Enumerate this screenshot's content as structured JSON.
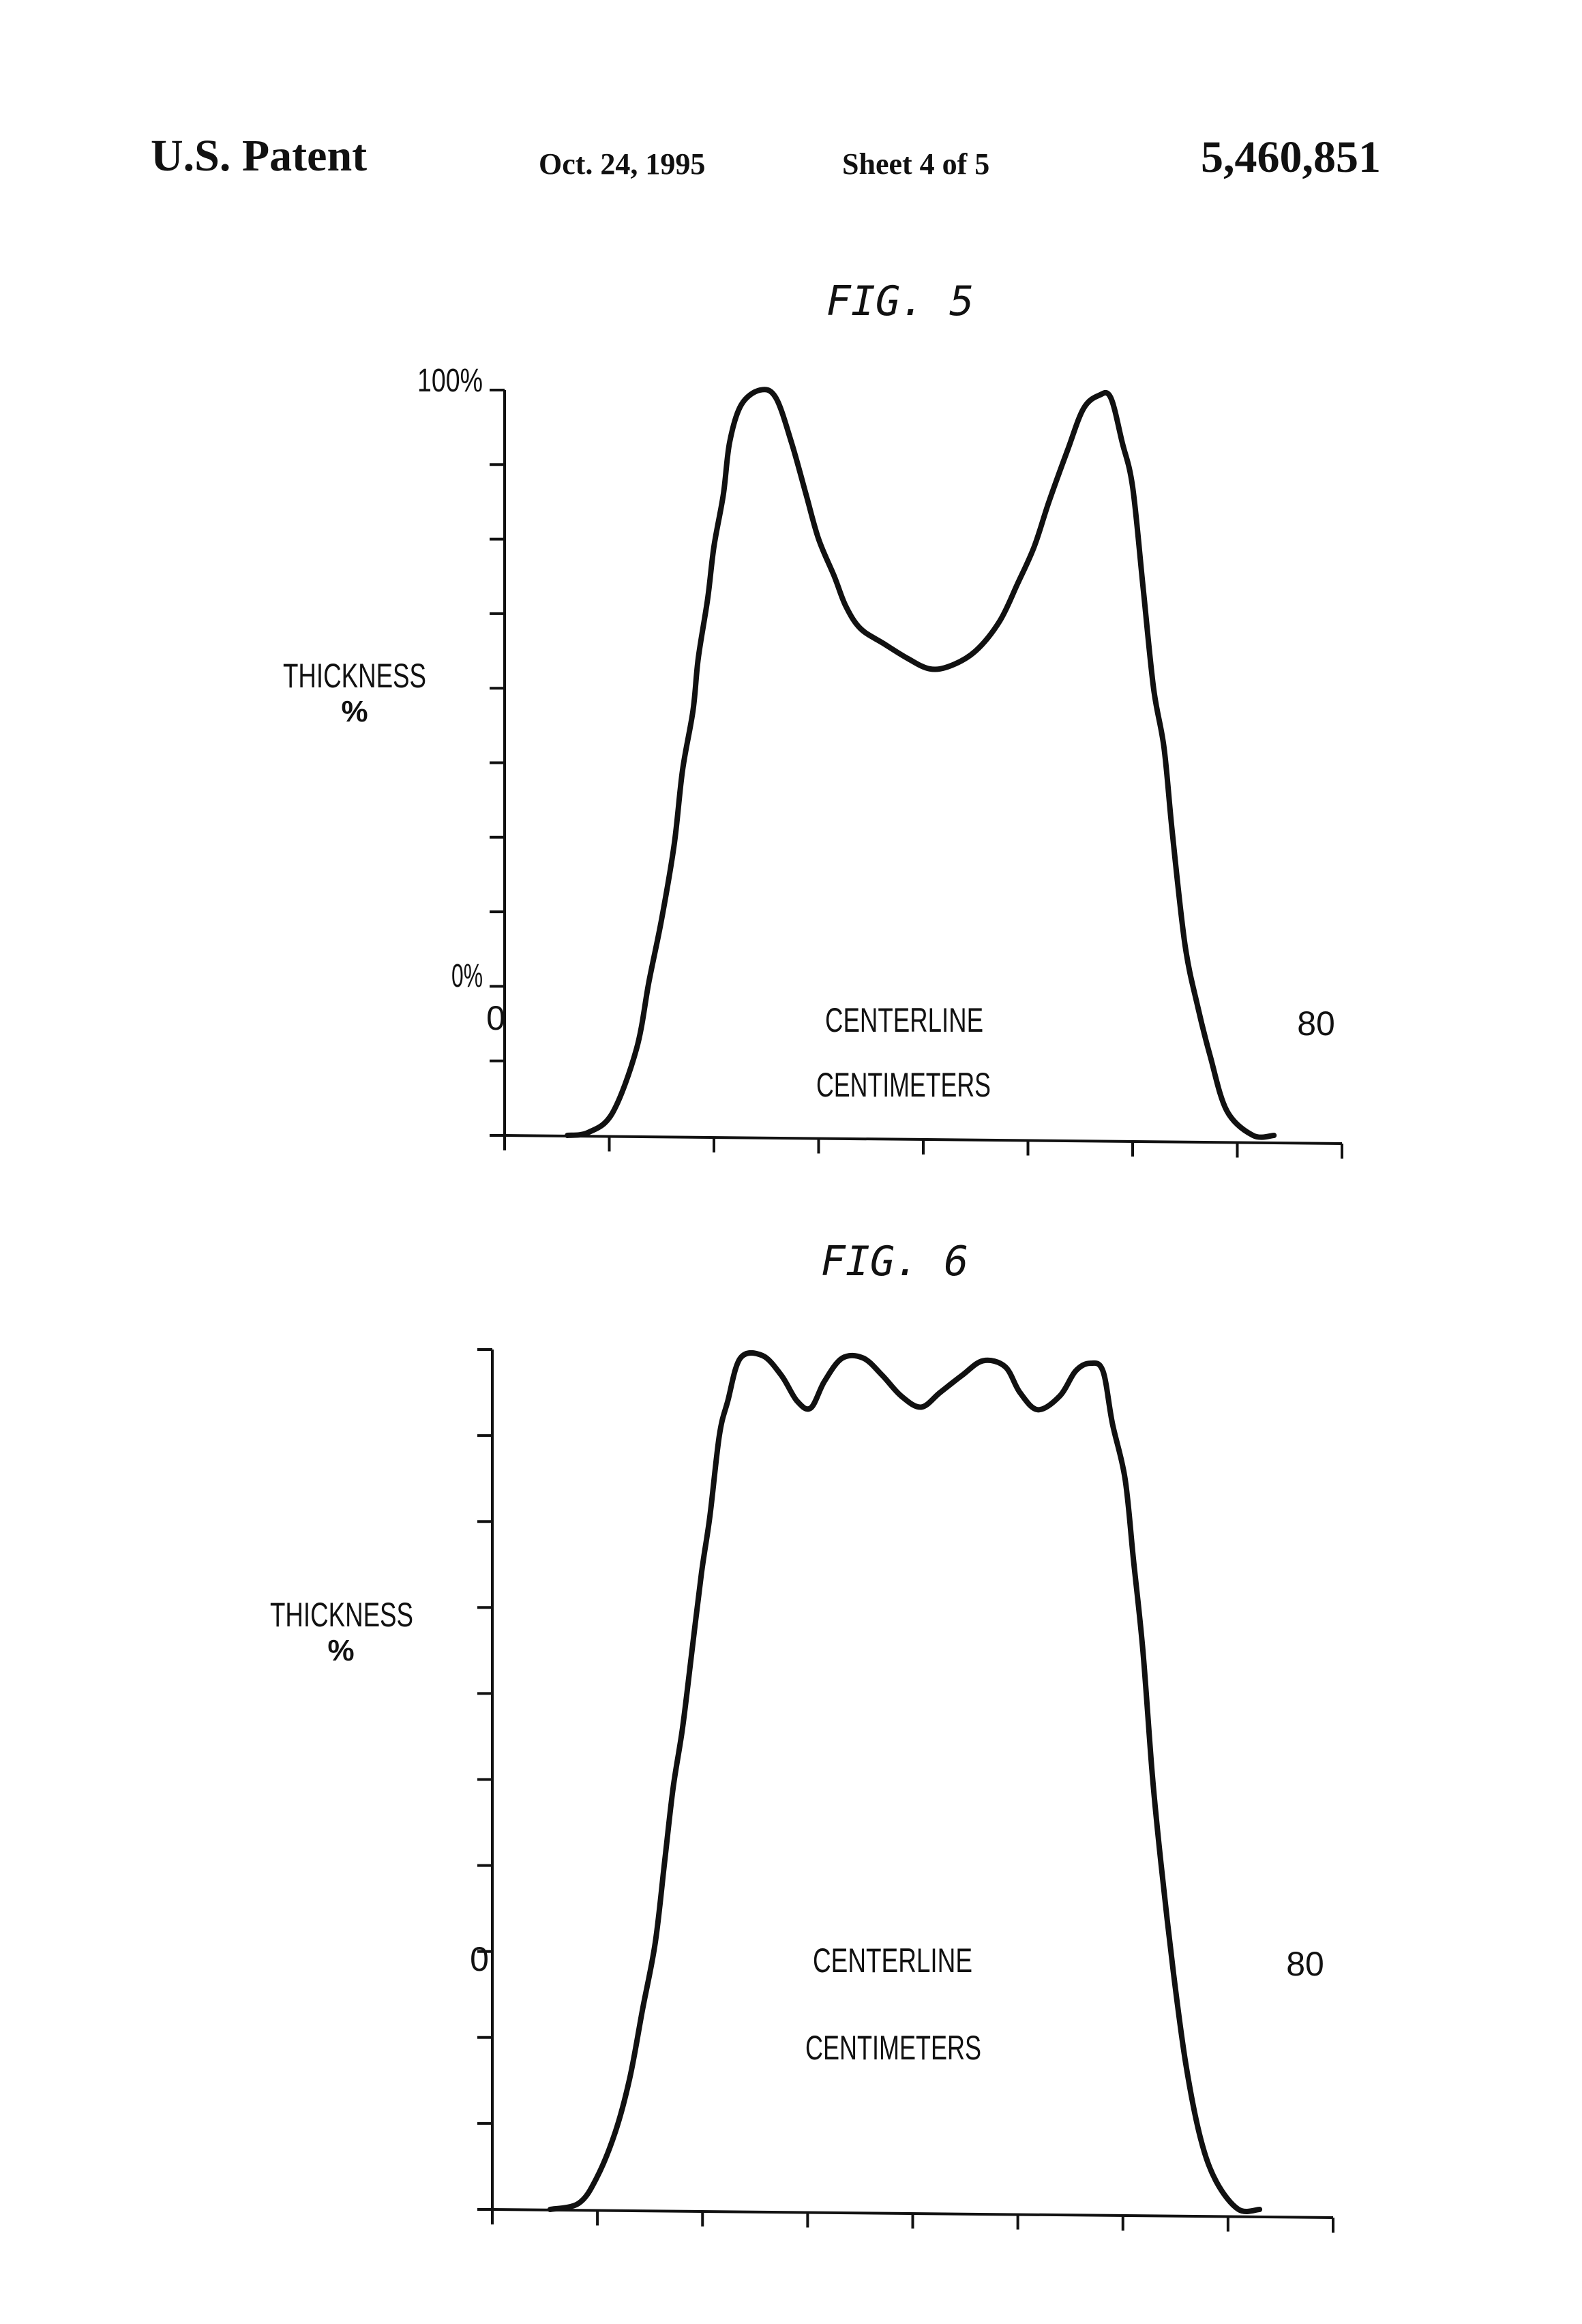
{
  "header": {
    "left": "U.S. Patent",
    "date": "Oct. 24, 1995",
    "sheet": "Sheet 4 of 5",
    "number": "5,460,851"
  },
  "chart_data": [
    {
      "type": "line",
      "title": "FIG. 5",
      "ylabel": "THICKNESS",
      "ylabel_unit": "%",
      "xlabel": "CENTIMETERS",
      "center_label": "CENTERLINE",
      "x_tick_labels": [
        "0",
        "80"
      ],
      "y_tick_labels": [
        "0%",
        "100%"
      ],
      "xlim": [
        0,
        80
      ],
      "ylim": [
        0,
        100
      ],
      "x_tick_step": 10,
      "y_tick_step": 10,
      "grid": false,
      "series": [
        {
          "name": "thickness",
          "x": [
            6,
            8,
            10.3,
            12.6,
            13.8,
            15,
            16.2,
            17,
            18,
            18.5,
            19.4,
            20,
            20.9,
            21.5,
            22.6,
            24.4,
            25.9,
            27.4,
            28.8,
            30,
            31.5,
            32.6,
            34,
            36.2,
            38.5,
            40.6,
            42.6,
            45,
            47.3,
            49,
            50.6,
            52,
            53.8,
            55.3,
            56.8,
            57.9,
            59,
            60,
            61,
            62,
            63,
            63.8,
            65,
            66.2,
            67.4,
            69,
            71.5,
            73.5
          ],
          "y": [
            0,
            0.4,
            3,
            11.6,
            20.7,
            29,
            39,
            49,
            57,
            64,
            72,
            79,
            86,
            93,
            98,
            100,
            99,
            93,
            86,
            80,
            75,
            71,
            68,
            66,
            64,
            62.6,
            63,
            65,
            69,
            74,
            79,
            85,
            92,
            97.5,
            99.3,
            99,
            93,
            87,
            73.5,
            60,
            52,
            40.5,
            25.6,
            17.4,
            10.7,
            3.3,
            0,
            0
          ]
        }
      ]
    },
    {
      "type": "line",
      "title": "FIG. 6",
      "ylabel": "THICKNESS",
      "ylabel_unit": "%",
      "xlabel": "CENTIMETERS",
      "center_label": "CENTERLINE",
      "x_tick_labels": [
        "0",
        "80"
      ],
      "xlim": [
        0,
        80
      ],
      "ylim": [
        0,
        100
      ],
      "x_tick_step": 10,
      "y_tick_step": 10,
      "grid": false,
      "series": [
        {
          "name": "thickness",
          "x": [
            5.5,
            8.2,
            9.9,
            11.7,
            13.1,
            14.3,
            15.5,
            16.4,
            17.2,
            18.1,
            19,
            19.9,
            20.7,
            21.6,
            22.4,
            23.6,
            25.7,
            27.5,
            29,
            30.3,
            31.6,
            33.3,
            35.3,
            37.1,
            38.9,
            40.8,
            42.6,
            44.7,
            46.7,
            48.8,
            50.2,
            51.9,
            54,
            55.5,
            56.9,
            58.1,
            59,
            60.2,
            61,
            61.9,
            62.8,
            63.6,
            64.8,
            66,
            67.4,
            68.9,
            71,
            73
          ],
          "y": [
            0,
            0.7,
            3.6,
            9,
            15.4,
            23.3,
            31,
            40.5,
            49,
            56,
            65,
            74,
            80.6,
            90,
            94,
            99,
            99.3,
            97,
            94,
            93.2,
            96.3,
            99,
            99,
            97,
            94.6,
            93.3,
            95,
            97,
            98.7,
            98,
            95,
            93,
            94.6,
            97.5,
            98.4,
            97.5,
            91.4,
            85,
            75.6,
            65,
            50.5,
            40.5,
            27.6,
            16.8,
            8.2,
            3.2,
            0,
            0
          ]
        }
      ]
    }
  ]
}
